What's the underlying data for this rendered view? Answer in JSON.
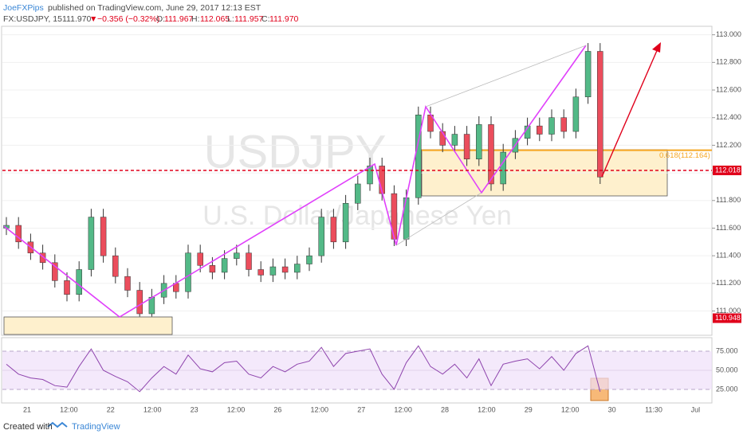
{
  "header": {
    "author": "JoeFXPips",
    "published": "published on TradingView.com, June 29, 2017 12:13 EST",
    "symbol": "FX:USDJPY, 15",
    "last": "111.970",
    "arrow": "▼",
    "change": "−0.356 (−0.32%)",
    "o_label": "O:",
    "o": "111.967",
    "h_label": "H:",
    "h": "112.065",
    "l_label": "L:",
    "l": "111.957",
    "c_label": "C:",
    "c": "111.970"
  },
  "watermark": {
    "symbol": "USDJPY",
    "description": "U.S. Dollar/Japanese Yen"
  },
  "footer": {
    "created": "Created with",
    "brand": "TradingView"
  },
  "x_labels": [
    "21",
    "12:00",
    "22",
    "12:00",
    "23",
    "12:00",
    "26",
    "12:00",
    "27",
    "12:00",
    "28",
    "12:00",
    "29",
    "12:00",
    "30",
    "11:30",
    "Jul"
  ],
  "chart_data": [
    {
      "type": "candlestick",
      "up_color": "#53b987",
      "down_color": "#eb4d5c",
      "open": [
        111.6,
        111.62,
        111.5,
        111.42,
        111.35,
        111.22,
        111.12,
        111.3,
        111.68,
        111.4,
        111.25,
        111.15,
        110.98,
        111.1,
        111.2,
        111.14,
        111.42,
        111.33,
        111.28,
        111.38,
        111.42,
        111.3,
        111.26,
        111.32,
        111.28,
        111.34,
        111.4,
        111.68,
        111.5,
        111.78,
        111.92,
        112.05,
        111.85,
        111.52,
        111.82,
        112.42,
        112.3,
        112.2,
        112.28,
        112.1,
        112.35,
        111.92,
        112.15,
        112.25,
        112.34,
        112.28,
        112.4,
        112.3,
        112.55,
        112.88
      ],
      "high": [
        111.68,
        111.68,
        111.56,
        111.48,
        111.41,
        111.28,
        111.36,
        111.74,
        111.74,
        111.46,
        111.31,
        111.21,
        111.16,
        111.26,
        111.26,
        111.48,
        111.48,
        111.39,
        111.44,
        111.48,
        111.48,
        111.36,
        111.38,
        111.38,
        111.4,
        111.46,
        111.74,
        111.74,
        111.84,
        111.98,
        112.11,
        112.11,
        111.91,
        111.88,
        112.48,
        112.48,
        112.36,
        112.34,
        112.34,
        112.41,
        112.41,
        112.21,
        112.31,
        112.4,
        112.4,
        112.46,
        112.46,
        112.61,
        112.94,
        112.94
      ],
      "low": [
        111.55,
        111.45,
        111.37,
        111.3,
        111.17,
        111.07,
        111.07,
        111.25,
        111.35,
        111.2,
        111.1,
        110.96,
        110.96,
        111.05,
        111.09,
        111.09,
        111.28,
        111.23,
        111.23,
        111.33,
        111.25,
        111.21,
        111.21,
        111.23,
        111.23,
        111.29,
        111.35,
        111.45,
        111.45,
        111.73,
        111.87,
        111.8,
        111.47,
        111.47,
        111.77,
        112.25,
        112.15,
        112.15,
        112.05,
        112.05,
        111.87,
        111.87,
        112.1,
        112.2,
        112.23,
        112.23,
        112.25,
        112.25,
        112.5,
        111.92
      ],
      "close": [
        111.62,
        111.5,
        111.42,
        111.35,
        111.22,
        111.12,
        111.3,
        111.68,
        111.4,
        111.25,
        111.15,
        110.98,
        111.1,
        111.2,
        111.14,
        111.42,
        111.33,
        111.28,
        111.38,
        111.42,
        111.3,
        111.26,
        111.32,
        111.28,
        111.34,
        111.4,
        111.68,
        111.5,
        111.78,
        111.92,
        112.05,
        111.85,
        111.52,
        111.82,
        112.42,
        112.3,
        112.2,
        112.28,
        112.1,
        112.35,
        111.92,
        112.15,
        112.25,
        112.34,
        112.28,
        112.4,
        112.3,
        112.55,
        112.88,
        111.97
      ],
      "ylim": [
        110.83,
        113.05
      ],
      "yticks": [
        {
          "value": 111.0,
          "label": "111.000"
        },
        {
          "value": 111.2,
          "label": "111.200"
        },
        {
          "value": 111.4,
          "label": "111.400"
        },
        {
          "value": 111.6,
          "label": "111.600"
        },
        {
          "value": 111.8,
          "label": "111.800"
        },
        {
          "value": 112.0,
          "label": "112.000"
        },
        {
          "value": 112.2,
          "label": "112.200"
        },
        {
          "value": 112.4,
          "label": "112.400"
        },
        {
          "value": 112.6,
          "label": "112.600"
        },
        {
          "value": 112.8,
          "label": "112.800"
        },
        {
          "value": 113.0,
          "label": "113.000"
        }
      ],
      "price_line": {
        "value": 112.018,
        "label": "112.018",
        "color": "#e0001b"
      },
      "low_tag": {
        "value": 110.948,
        "label": "110.948",
        "color": "#e0001b"
      },
      "fib_level": {
        "value": 112.164,
        "label": "0.618(112.164)",
        "color": "#f5a623"
      }
    },
    {
      "type": "line",
      "color": "#8e44ad",
      "values": [
        58,
        45,
        40,
        38,
        30,
        28,
        55,
        78,
        50,
        42,
        35,
        22,
        40,
        55,
        45,
        70,
        52,
        48,
        60,
        62,
        45,
        40,
        55,
        48,
        58,
        62,
        80,
        55,
        72,
        75,
        78,
        45,
        25,
        60,
        82,
        55,
        45,
        58,
        40,
        65,
        30,
        58,
        62,
        65,
        52,
        68,
        50,
        72,
        82,
        22
      ],
      "ylim": [
        8.3,
        91.7
      ],
      "yticks": [
        {
          "value": 25,
          "label": "25.000"
        },
        {
          "value": 50,
          "label": "50.000"
        },
        {
          "value": 75,
          "label": "75.000"
        }
      ]
    }
  ]
}
